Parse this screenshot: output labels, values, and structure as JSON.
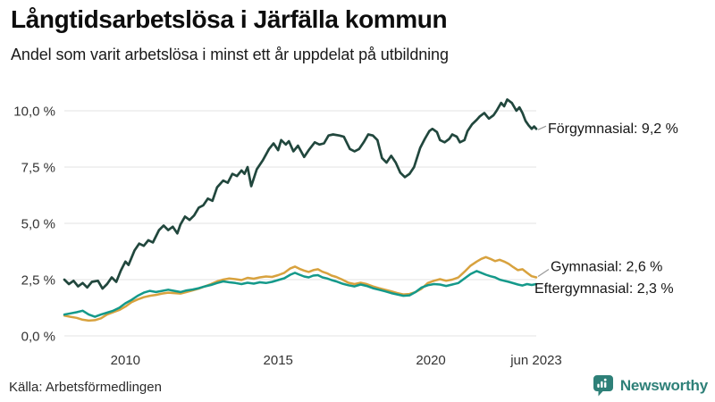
{
  "header": {
    "title": "Långtidsarbetslösa i Järfälla kommun",
    "subtitle": "Andel som varit arbetslösa i minst ett år uppdelat på utbildning"
  },
  "footer": {
    "source": "Källa: Arbetsförmedlingen",
    "brand": "Newsworthy",
    "brand_color": "#2e8078"
  },
  "chart_data": {
    "type": "line",
    "title": "Långtidsarbetslösa i Järfälla kommun",
    "subtitle": "Andel som varit arbetslösa i minst ett år uppdelat på utbildning",
    "unit": "%",
    "grid": true,
    "legend_position": "right-line-annotations",
    "x_axis": {
      "range": [
        2008.0,
        2023.45
      ],
      "ticks": [
        {
          "t": 2010,
          "label": "2010"
        },
        {
          "t": 2015,
          "label": "2015"
        },
        {
          "t": 2020,
          "label": "2020"
        },
        {
          "t": 2023.45,
          "label": "jun 2023"
        }
      ]
    },
    "y_axis": {
      "range": [
        0,
        10.6
      ],
      "ticks": [
        {
          "v": 0,
          "label": "0,0 %"
        },
        {
          "v": 2.5,
          "label": "2,5 %"
        },
        {
          "v": 5,
          "label": "5,0 %"
        },
        {
          "v": 7.5,
          "label": "7,5 %"
        },
        {
          "v": 10,
          "label": "10,0 %"
        }
      ]
    },
    "gridline_color": "#e3e3e3",
    "series": [
      {
        "name": "Förgymnasial",
        "slug": "forgymnasial",
        "color": "#21473d",
        "last_value_label": "9,2 %",
        "annotation": "Förgymnasial: 9,2 %",
        "points": [
          [
            2008.0,
            2.5
          ],
          [
            2008.15,
            2.3
          ],
          [
            2008.3,
            2.45
          ],
          [
            2008.45,
            2.2
          ],
          [
            2008.6,
            2.35
          ],
          [
            2008.75,
            2.15
          ],
          [
            2008.9,
            2.4
          ],
          [
            2009.1,
            2.45
          ],
          [
            2009.25,
            2.1
          ],
          [
            2009.4,
            2.3
          ],
          [
            2009.55,
            2.6
          ],
          [
            2009.7,
            2.4
          ],
          [
            2009.85,
            2.9
          ],
          [
            2010.0,
            3.3
          ],
          [
            2010.1,
            3.15
          ],
          [
            2010.3,
            3.8
          ],
          [
            2010.45,
            4.1
          ],
          [
            2010.6,
            4.0
          ],
          [
            2010.75,
            4.25
          ],
          [
            2010.9,
            4.15
          ],
          [
            2011.1,
            4.7
          ],
          [
            2011.25,
            4.9
          ],
          [
            2011.4,
            4.7
          ],
          [
            2011.55,
            4.85
          ],
          [
            2011.7,
            4.55
          ],
          [
            2011.8,
            4.95
          ],
          [
            2011.95,
            5.3
          ],
          [
            2012.1,
            5.15
          ],
          [
            2012.25,
            5.35
          ],
          [
            2012.4,
            5.7
          ],
          [
            2012.55,
            5.8
          ],
          [
            2012.7,
            6.1
          ],
          [
            2012.85,
            6.0
          ],
          [
            2013.0,
            6.6
          ],
          [
            2013.2,
            6.9
          ],
          [
            2013.35,
            6.8
          ],
          [
            2013.5,
            7.2
          ],
          [
            2013.65,
            7.1
          ],
          [
            2013.8,
            7.35
          ],
          [
            2013.9,
            7.2
          ],
          [
            2014.0,
            7.5
          ],
          [
            2014.12,
            6.65
          ],
          [
            2014.3,
            7.4
          ],
          [
            2014.5,
            7.8
          ],
          [
            2014.7,
            8.3
          ],
          [
            2014.85,
            8.55
          ],
          [
            2015.0,
            8.25
          ],
          [
            2015.1,
            8.7
          ],
          [
            2015.25,
            8.5
          ],
          [
            2015.35,
            8.65
          ],
          [
            2015.5,
            8.2
          ],
          [
            2015.65,
            8.45
          ],
          [
            2015.85,
            7.95
          ],
          [
            2016.0,
            8.25
          ],
          [
            2016.2,
            8.6
          ],
          [
            2016.35,
            8.5
          ],
          [
            2016.5,
            8.55
          ],
          [
            2016.65,
            8.9
          ],
          [
            2016.8,
            8.95
          ],
          [
            2017.0,
            8.9
          ],
          [
            2017.15,
            8.85
          ],
          [
            2017.35,
            8.3
          ],
          [
            2017.5,
            8.2
          ],
          [
            2017.65,
            8.3
          ],
          [
            2017.8,
            8.6
          ],
          [
            2017.95,
            8.95
          ],
          [
            2018.1,
            8.9
          ],
          [
            2018.25,
            8.7
          ],
          [
            2018.4,
            7.9
          ],
          [
            2018.55,
            7.7
          ],
          [
            2018.7,
            8.0
          ],
          [
            2018.85,
            7.7
          ],
          [
            2019.0,
            7.25
          ],
          [
            2019.15,
            7.05
          ],
          [
            2019.3,
            7.2
          ],
          [
            2019.45,
            7.5
          ],
          [
            2019.65,
            8.35
          ],
          [
            2019.8,
            8.75
          ],
          [
            2019.95,
            9.1
          ],
          [
            2020.05,
            9.2
          ],
          [
            2020.2,
            9.05
          ],
          [
            2020.3,
            8.7
          ],
          [
            2020.45,
            8.6
          ],
          [
            2020.6,
            8.75
          ],
          [
            2020.7,
            8.95
          ],
          [
            2020.85,
            8.85
          ],
          [
            2020.95,
            8.6
          ],
          [
            2021.1,
            8.7
          ],
          [
            2021.2,
            9.1
          ],
          [
            2021.35,
            9.4
          ],
          [
            2021.5,
            9.6
          ],
          [
            2021.6,
            9.75
          ],
          [
            2021.75,
            9.9
          ],
          [
            2021.9,
            9.65
          ],
          [
            2022.05,
            9.8
          ],
          [
            2022.15,
            10.0
          ],
          [
            2022.3,
            10.35
          ],
          [
            2022.4,
            10.2
          ],
          [
            2022.5,
            10.5
          ],
          [
            2022.65,
            10.35
          ],
          [
            2022.8,
            10.0
          ],
          [
            2022.9,
            10.15
          ],
          [
            2023.0,
            9.9
          ],
          [
            2023.1,
            9.55
          ],
          [
            2023.2,
            9.35
          ],
          [
            2023.3,
            9.2
          ],
          [
            2023.38,
            9.3
          ],
          [
            2023.45,
            9.2
          ]
        ]
      },
      {
        "name": "Gymnasial",
        "slug": "gymnasial",
        "color": "#d8a23e",
        "last_value_label": "2,6 %",
        "annotation": "Gymnasial: 2,6 %",
        "points": [
          [
            2008.0,
            0.9
          ],
          [
            2008.2,
            0.85
          ],
          [
            2008.4,
            0.8
          ],
          [
            2008.6,
            0.72
          ],
          [
            2008.8,
            0.68
          ],
          [
            2009.0,
            0.7
          ],
          [
            2009.2,
            0.78
          ],
          [
            2009.4,
            0.95
          ],
          [
            2009.6,
            1.05
          ],
          [
            2009.8,
            1.15
          ],
          [
            2010.0,
            1.3
          ],
          [
            2010.2,
            1.5
          ],
          [
            2010.4,
            1.62
          ],
          [
            2010.6,
            1.72
          ],
          [
            2010.8,
            1.78
          ],
          [
            2011.0,
            1.82
          ],
          [
            2011.2,
            1.88
          ],
          [
            2011.4,
            1.92
          ],
          [
            2011.6,
            1.9
          ],
          [
            2011.8,
            1.88
          ],
          [
            2012.0,
            1.95
          ],
          [
            2012.2,
            2.02
          ],
          [
            2012.4,
            2.1
          ],
          [
            2012.6,
            2.2
          ],
          [
            2012.8,
            2.3
          ],
          [
            2013.0,
            2.42
          ],
          [
            2013.2,
            2.5
          ],
          [
            2013.4,
            2.55
          ],
          [
            2013.6,
            2.52
          ],
          [
            2013.8,
            2.48
          ],
          [
            2014.0,
            2.58
          ],
          [
            2014.2,
            2.54
          ],
          [
            2014.4,
            2.6
          ],
          [
            2014.6,
            2.64
          ],
          [
            2014.8,
            2.62
          ],
          [
            2015.0,
            2.7
          ],
          [
            2015.2,
            2.8
          ],
          [
            2015.4,
            3.0
          ],
          [
            2015.55,
            3.08
          ],
          [
            2015.7,
            2.98
          ],
          [
            2015.85,
            2.9
          ],
          [
            2016.0,
            2.84
          ],
          [
            2016.15,
            2.92
          ],
          [
            2016.3,
            2.96
          ],
          [
            2016.45,
            2.85
          ],
          [
            2016.6,
            2.78
          ],
          [
            2016.75,
            2.68
          ],
          [
            2016.9,
            2.62
          ],
          [
            2017.1,
            2.5
          ],
          [
            2017.3,
            2.36
          ],
          [
            2017.5,
            2.3
          ],
          [
            2017.7,
            2.36
          ],
          [
            2017.9,
            2.3
          ],
          [
            2018.1,
            2.2
          ],
          [
            2018.3,
            2.12
          ],
          [
            2018.5,
            2.05
          ],
          [
            2018.7,
            1.98
          ],
          [
            2018.9,
            1.9
          ],
          [
            2019.1,
            1.84
          ],
          [
            2019.3,
            1.86
          ],
          [
            2019.5,
            1.95
          ],
          [
            2019.7,
            2.1
          ],
          [
            2019.9,
            2.35
          ],
          [
            2020.1,
            2.45
          ],
          [
            2020.3,
            2.52
          ],
          [
            2020.5,
            2.45
          ],
          [
            2020.7,
            2.5
          ],
          [
            2020.9,
            2.6
          ],
          [
            2021.1,
            2.85
          ],
          [
            2021.3,
            3.12
          ],
          [
            2021.5,
            3.3
          ],
          [
            2021.65,
            3.42
          ],
          [
            2021.8,
            3.5
          ],
          [
            2021.95,
            3.42
          ],
          [
            2022.1,
            3.32
          ],
          [
            2022.25,
            3.38
          ],
          [
            2022.4,
            3.3
          ],
          [
            2022.55,
            3.2
          ],
          [
            2022.7,
            3.05
          ],
          [
            2022.85,
            2.92
          ],
          [
            2023.0,
            2.96
          ],
          [
            2023.15,
            2.8
          ],
          [
            2023.3,
            2.65
          ],
          [
            2023.45,
            2.6
          ]
        ]
      },
      {
        "name": "Eftergymnasial",
        "slug": "eftergymnasial",
        "color": "#14998a",
        "last_value_label": "2,3 %",
        "annotation": "Eftergymnasial: 2,3 %",
        "points": [
          [
            2008.0,
            0.95
          ],
          [
            2008.2,
            1.0
          ],
          [
            2008.4,
            1.05
          ],
          [
            2008.6,
            1.12
          ],
          [
            2008.8,
            0.95
          ],
          [
            2009.0,
            0.85
          ],
          [
            2009.2,
            0.95
          ],
          [
            2009.4,
            1.03
          ],
          [
            2009.6,
            1.12
          ],
          [
            2009.8,
            1.25
          ],
          [
            2010.0,
            1.45
          ],
          [
            2010.2,
            1.6
          ],
          [
            2010.4,
            1.78
          ],
          [
            2010.6,
            1.92
          ],
          [
            2010.8,
            2.0
          ],
          [
            2011.0,
            1.95
          ],
          [
            2011.2,
            2.0
          ],
          [
            2011.4,
            2.05
          ],
          [
            2011.6,
            2.0
          ],
          [
            2011.8,
            1.95
          ],
          [
            2012.0,
            2.02
          ],
          [
            2012.2,
            2.06
          ],
          [
            2012.4,
            2.12
          ],
          [
            2012.6,
            2.2
          ],
          [
            2012.8,
            2.26
          ],
          [
            2013.0,
            2.35
          ],
          [
            2013.2,
            2.42
          ],
          [
            2013.4,
            2.38
          ],
          [
            2013.6,
            2.35
          ],
          [
            2013.8,
            2.3
          ],
          [
            2014.0,
            2.36
          ],
          [
            2014.2,
            2.32
          ],
          [
            2014.4,
            2.38
          ],
          [
            2014.6,
            2.35
          ],
          [
            2014.8,
            2.4
          ],
          [
            2015.0,
            2.48
          ],
          [
            2015.2,
            2.56
          ],
          [
            2015.4,
            2.72
          ],
          [
            2015.55,
            2.8
          ],
          [
            2015.7,
            2.72
          ],
          [
            2015.85,
            2.64
          ],
          [
            2016.0,
            2.6
          ],
          [
            2016.15,
            2.68
          ],
          [
            2016.3,
            2.7
          ],
          [
            2016.45,
            2.6
          ],
          [
            2016.6,
            2.55
          ],
          [
            2016.75,
            2.48
          ],
          [
            2016.9,
            2.42
          ],
          [
            2017.1,
            2.32
          ],
          [
            2017.3,
            2.25
          ],
          [
            2017.5,
            2.2
          ],
          [
            2017.7,
            2.28
          ],
          [
            2017.9,
            2.22
          ],
          [
            2018.1,
            2.12
          ],
          [
            2018.3,
            2.05
          ],
          [
            2018.5,
            1.98
          ],
          [
            2018.7,
            1.9
          ],
          [
            2018.9,
            1.84
          ],
          [
            2019.1,
            1.78
          ],
          [
            2019.3,
            1.8
          ],
          [
            2019.5,
            1.95
          ],
          [
            2019.7,
            2.15
          ],
          [
            2019.9,
            2.25
          ],
          [
            2020.1,
            2.3
          ],
          [
            2020.3,
            2.28
          ],
          [
            2020.5,
            2.22
          ],
          [
            2020.7,
            2.28
          ],
          [
            2020.9,
            2.35
          ],
          [
            2021.1,
            2.55
          ],
          [
            2021.3,
            2.75
          ],
          [
            2021.5,
            2.88
          ],
          [
            2021.65,
            2.8
          ],
          [
            2021.8,
            2.72
          ],
          [
            2021.95,
            2.65
          ],
          [
            2022.1,
            2.6
          ],
          [
            2022.25,
            2.5
          ],
          [
            2022.4,
            2.45
          ],
          [
            2022.55,
            2.4
          ],
          [
            2022.7,
            2.34
          ],
          [
            2022.85,
            2.28
          ],
          [
            2023.0,
            2.24
          ],
          [
            2023.15,
            2.3
          ],
          [
            2023.3,
            2.26
          ],
          [
            2023.45,
            2.3
          ]
        ]
      }
    ]
  }
}
